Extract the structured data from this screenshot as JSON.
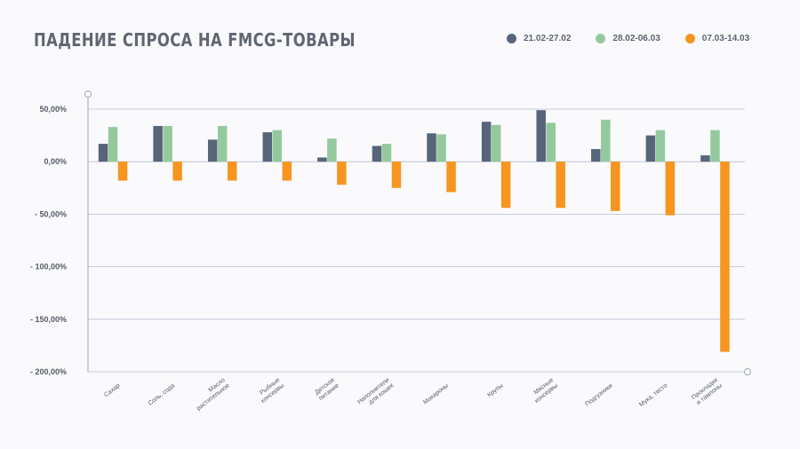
{
  "title": "ПАДЕНИЕ СПРОСА НА FMCG-ТОВАРЫ",
  "chart_data": {
    "type": "bar",
    "categories": [
      [
        "Сахар"
      ],
      [
        "Соль, сода"
      ],
      [
        "Масло",
        "растительное"
      ],
      [
        "Рыбные",
        "консервы"
      ],
      [
        "Детское",
        "питание"
      ],
      [
        "Наполнители",
        "для кошек"
      ],
      [
        "Макароны"
      ],
      [
        "Крупы"
      ],
      [
        "Мясные",
        "консервы"
      ],
      [
        "Подгузники"
      ],
      [
        "Мука, тесто"
      ],
      [
        "Прокладки",
        "и тампоны"
      ]
    ],
    "series": [
      {
        "name": "21.02-27.02",
        "color": "#56657a",
        "values": [
          17,
          34,
          21,
          28,
          4,
          15,
          27,
          38,
          49,
          12,
          25,
          6
        ]
      },
      {
        "name": "28.02-06.03",
        "color": "#94c99d",
        "values": [
          33,
          34,
          34,
          30,
          22,
          17,
          26,
          35,
          37,
          40,
          30,
          30
        ]
      },
      {
        "name": "07.03-14.03",
        "color": "#f7951f",
        "values": [
          -18,
          -18,
          -18,
          -18,
          -22,
          -25,
          -29,
          -44,
          -44,
          -47,
          -51,
          -181
        ]
      }
    ],
    "ylim": [
      -200,
      50
    ],
    "yticks": [
      50,
      0,
      -50,
      -100,
      -150,
      -200
    ],
    "ytick_labels": [
      "50,00%",
      "0,00%",
      "- 50,00%",
      "- 100,00%",
      "- 150,00%",
      "- 200,00%"
    ],
    "grid": true,
    "legend_position": "top-right"
  }
}
